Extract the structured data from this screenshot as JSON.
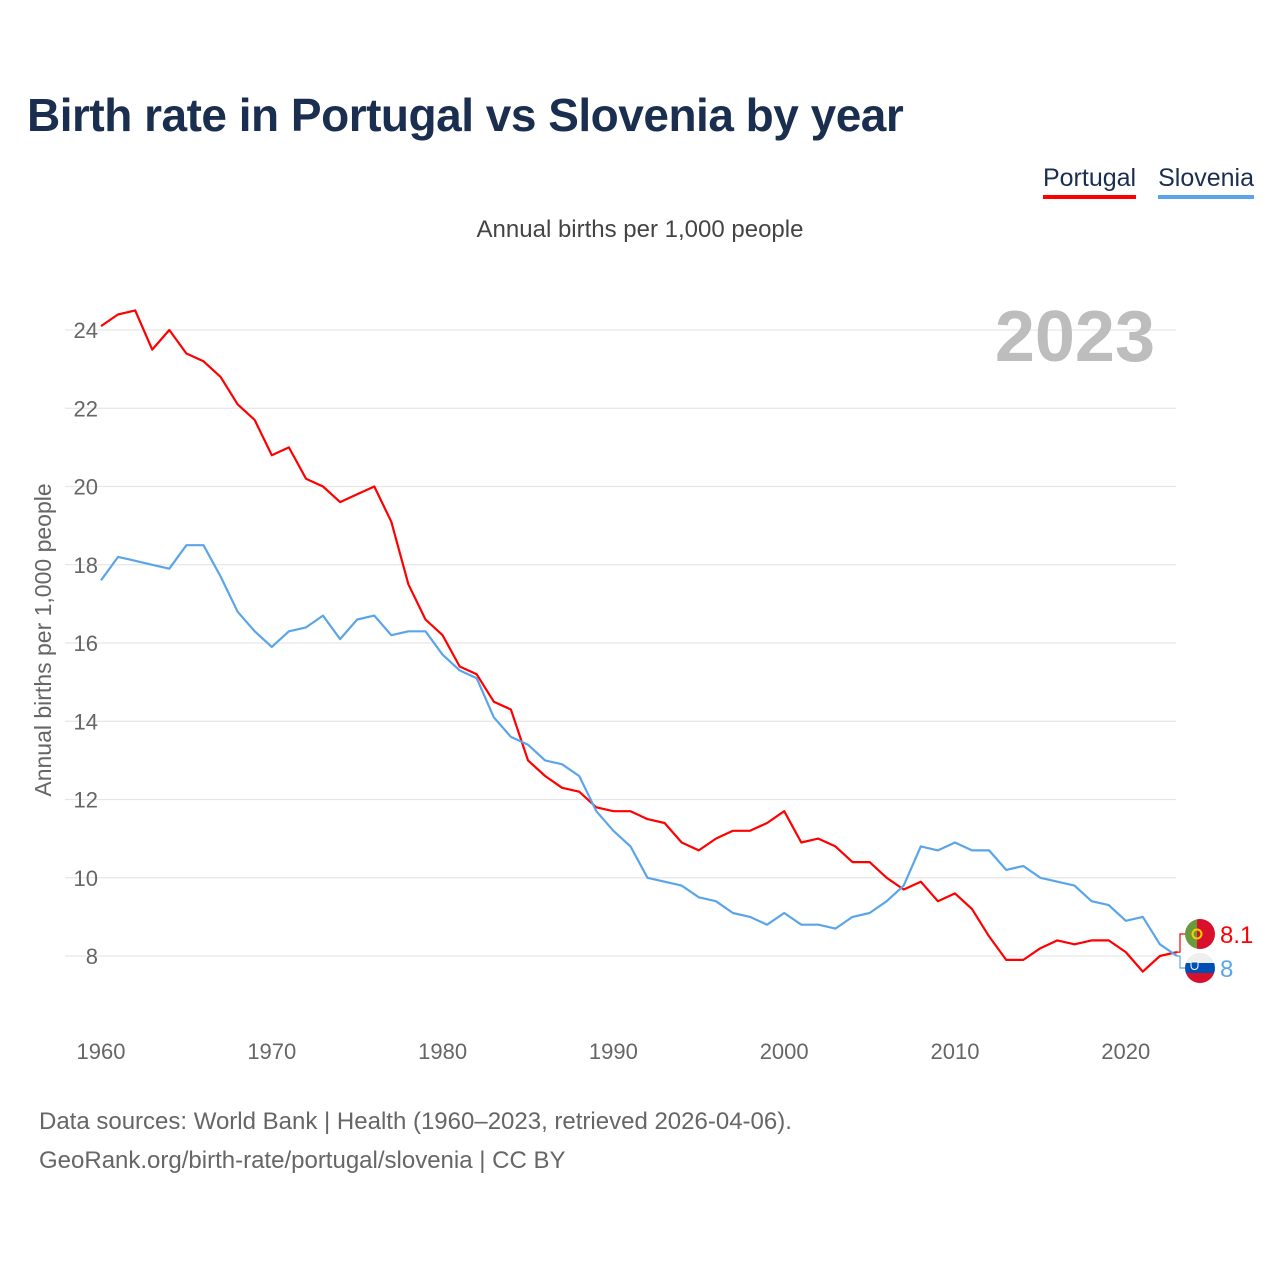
{
  "title": "Birth rate in Portugal vs Slovenia by year",
  "legend": [
    {
      "name": "Portugal",
      "color": "#ff0000"
    },
    {
      "name": "Slovenia",
      "color": "#5aa5ea"
    }
  ],
  "footer": {
    "line1": "Data sources: World Bank | Health (1960–2023, retrieved 2026-04-06).",
    "line2": "GeoRank.org/birth-rate/portugal/slovenia | CC BY"
  },
  "chart_data": {
    "type": "line",
    "title": "Birth rate in Portugal vs Slovenia by year",
    "subtitle": "Annual births per 1,000 people",
    "ylabel": "Annual births per 1,000 people",
    "xlabel": "",
    "year_label": "2023",
    "xlim": [
      1960,
      2023
    ],
    "ylim": [
      6.6,
      25
    ],
    "xticks": [
      1960,
      1970,
      1980,
      1990,
      2000,
      2010,
      2020
    ],
    "yticks": [
      8,
      10,
      12,
      14,
      16,
      18,
      20,
      22,
      24
    ],
    "grid": true,
    "legend_position": "top-right",
    "x": [
      1960,
      1961,
      1962,
      1963,
      1964,
      1965,
      1966,
      1967,
      1968,
      1969,
      1970,
      1971,
      1972,
      1973,
      1974,
      1975,
      1976,
      1977,
      1978,
      1979,
      1980,
      1981,
      1982,
      1983,
      1984,
      1985,
      1986,
      1987,
      1988,
      1989,
      1990,
      1991,
      1992,
      1993,
      1994,
      1995,
      1996,
      1997,
      1998,
      1999,
      2000,
      2001,
      2002,
      2003,
      2004,
      2005,
      2006,
      2007,
      2008,
      2009,
      2010,
      2011,
      2012,
      2013,
      2014,
      2015,
      2016,
      2017,
      2018,
      2019,
      2020,
      2021,
      2022,
      2023
    ],
    "series": [
      {
        "name": "Portugal",
        "color": "#ff0000",
        "end_label": "8.1",
        "flag": "portugal-flag-icon",
        "values": [
          24.1,
          24.4,
          24.5,
          23.5,
          24.0,
          23.4,
          23.2,
          22.8,
          22.1,
          21.7,
          20.8,
          21.0,
          20.2,
          20.0,
          19.6,
          19.8,
          20.0,
          19.1,
          17.5,
          16.6,
          16.2,
          15.4,
          15.2,
          14.5,
          14.3,
          13.0,
          12.6,
          12.3,
          12.2,
          11.8,
          11.7,
          11.7,
          11.5,
          11.4,
          10.9,
          10.7,
          11.0,
          11.2,
          11.2,
          11.4,
          11.7,
          10.9,
          11.0,
          10.8,
          10.4,
          10.4,
          10.0,
          9.7,
          9.9,
          9.4,
          9.6,
          9.2,
          8.5,
          7.9,
          7.9,
          8.2,
          8.4,
          8.3,
          8.4,
          8.4,
          8.1,
          7.6,
          8.0,
          8.1
        ]
      },
      {
        "name": "Slovenia",
        "color": "#5aa5ea",
        "end_label": "8",
        "flag": "slovenia-flag-icon",
        "values": [
          17.6,
          18.2,
          18.1,
          18.0,
          17.9,
          18.5,
          18.5,
          17.7,
          16.8,
          16.3,
          15.9,
          16.3,
          16.4,
          16.7,
          16.1,
          16.6,
          16.7,
          16.2,
          16.3,
          16.3,
          15.7,
          15.3,
          15.1,
          14.1,
          13.6,
          13.4,
          13.0,
          12.9,
          12.6,
          11.7,
          11.2,
          10.8,
          10.0,
          9.9,
          9.8,
          9.5,
          9.4,
          9.1,
          9.0,
          8.8,
          9.1,
          8.8,
          8.8,
          8.7,
          9.0,
          9.1,
          9.4,
          9.8,
          10.8,
          10.7,
          10.9,
          10.7,
          10.7,
          10.2,
          10.3,
          10.0,
          9.9,
          9.8,
          9.4,
          9.3,
          8.9,
          9.0,
          8.3,
          8.0
        ]
      }
    ]
  }
}
